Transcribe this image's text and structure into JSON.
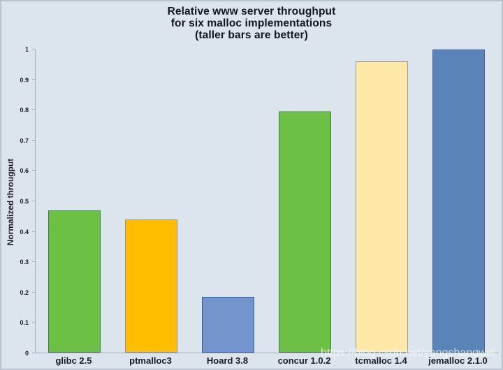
{
  "watermark": "https://blog.csdn.net/yangshangwei",
  "colors": {
    "background": "#dce5ee",
    "frame_border": "#b9c3cd",
    "axis": "#a3adb8",
    "title_text": "#14141e",
    "label_text": "#1b1b24",
    "watermark_text": "rgba(250,252,254,0.72)"
  },
  "chart_data": {
    "type": "bar",
    "title": "Relative www server throughput for six malloc implementations (taller bars are better)",
    "title_lines": [
      "Relative www server throughput",
      "for six malloc implementations",
      "(taller bars are better)"
    ],
    "xlabel": "",
    "ylabel": "Normalized througput",
    "ylim": [
      0,
      1
    ],
    "yticks": [
      0,
      0.1,
      0.2,
      0.3,
      0.4,
      0.5,
      0.6,
      0.7,
      0.8,
      0.9,
      1
    ],
    "ytick_labels": [
      "0",
      "0.1",
      "0.2",
      "0.3",
      "0.4",
      "0.5",
      "0.6",
      "0.7",
      "0.8",
      "0.9",
      "1"
    ],
    "categories": [
      "glibc 2.5",
      "ptmalloc3",
      "Hoard 3.8",
      "concur 1.0.2",
      "tcmalloc 1.4",
      "jemalloc 2.1.0"
    ],
    "values": [
      0.47,
      0.44,
      0.185,
      0.795,
      0.96,
      1.0
    ],
    "bar_colors": [
      "#6cc145",
      "#ffbe00",
      "#7394cd",
      "#6cc145",
      "#fee8a7",
      "#5a83b7"
    ],
    "bar_border_colors": [
      "#417a52",
      "#8c9091",
      "#2f5ca0",
      "#417a52",
      "#999b9c",
      "#46699c"
    ],
    "grid": false,
    "legend": null
  }
}
